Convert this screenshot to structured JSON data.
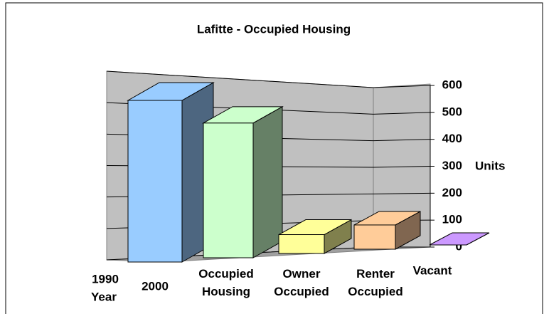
{
  "chart_data": {
    "type": "bar3d",
    "title": "Lafitte - Occupied Housing",
    "categories": [
      "Year",
      "Occupied Housing",
      "Owner Occupied",
      "Renter Occupied",
      "Vacant"
    ],
    "depth_labels": [
      "1990",
      "2000"
    ],
    "values": [
      600,
      500,
      70,
      90,
      0
    ],
    "colors": [
      "#99ccff",
      "#ccffcc",
      "#ffff99",
      "#ffcc99",
      "#cc99ff"
    ],
    "side_colors": [
      "#4d6680",
      "#668066",
      "#80804d",
      "#806650",
      "#664d80"
    ],
    "y_label": "Units",
    "ylim": [
      0,
      600
    ],
    "yticks": [
      0,
      100,
      200,
      300,
      400,
      500,
      600
    ],
    "grid": true
  }
}
